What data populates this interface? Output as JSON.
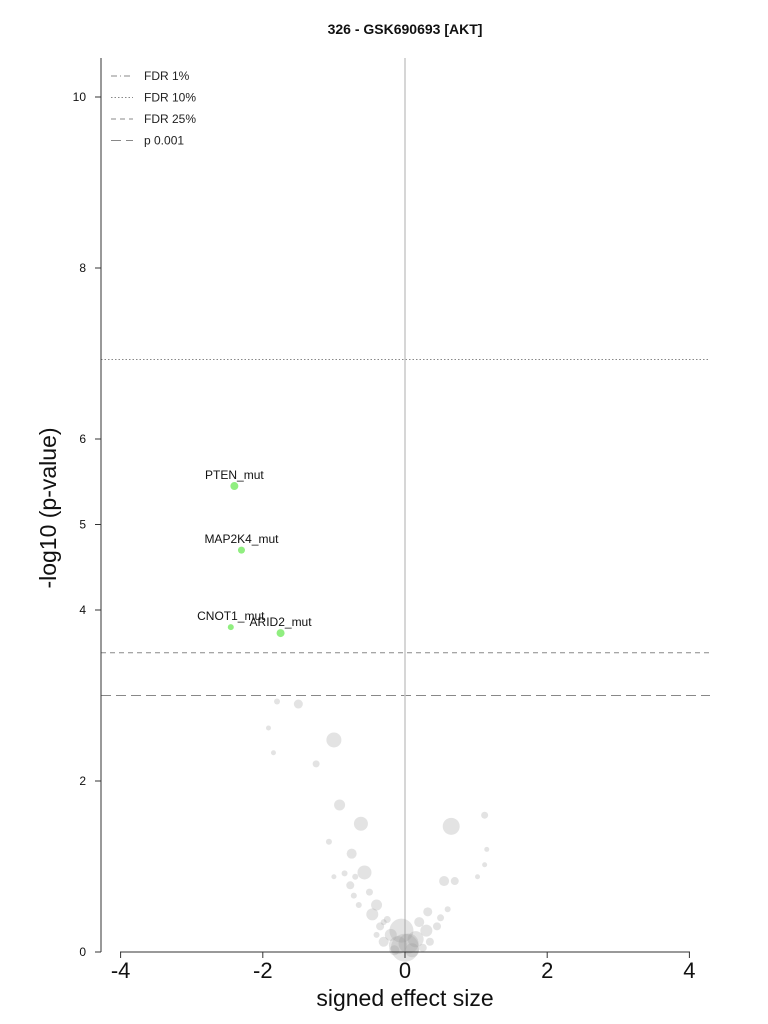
{
  "chart_data": {
    "type": "scatter",
    "title": "326 - GSK690693 [AKT]",
    "xlabel": "signed effect size",
    "ylabel": "-log10 (p-value)",
    "xlim": [
      -4.3,
      4.3
    ],
    "ylim": [
      0,
      10.5
    ],
    "x_ticks": [
      -4,
      -2,
      0,
      2,
      4
    ],
    "x_tick_labels": [
      "-4",
      "-2",
      "0",
      "2",
      "4"
    ],
    "y_ticks": [
      0,
      2,
      4,
      5,
      6,
      8,
      10
    ],
    "y_tick_labels": [
      "0",
      "2",
      "4",
      "5",
      "6",
      "8",
      "10"
    ],
    "legend_position": "top-left",
    "legend": [
      {
        "label": "FDR 1%",
        "style": "dashdot"
      },
      {
        "label": "FDR 10%",
        "style": "dotted"
      },
      {
        "label": "FDR 25%",
        "style": "dashed"
      },
      {
        "label": "p 0.001",
        "style": "longdash"
      }
    ],
    "threshold_lines": [
      {
        "label": "FDR 10%",
        "y": 6.93,
        "style": "dotted"
      },
      {
        "label": "FDR 25%",
        "y": 3.5,
        "style": "dashed"
      },
      {
        "label": "p 0.001",
        "y": 3.0,
        "style": "longdash"
      }
    ],
    "zero_line_x": 0,
    "colors": {
      "significant": "#90ee80",
      "nonsignificant": "#999999",
      "threshold": "#888888",
      "zero_line": "#c8c8c8"
    },
    "significant_points": [
      {
        "name": "PTEN_mut",
        "x": -2.4,
        "y": 5.45,
        "r": 4
      },
      {
        "name": "MAP2K4_mut",
        "x": -2.3,
        "y": 4.7,
        "r": 3.5
      },
      {
        "name": "CNOT1_mut",
        "x": -2.45,
        "y": 3.8,
        "r": 3
      },
      {
        "name": "ARID2_mut",
        "x": -1.75,
        "y": 3.73,
        "r": 4
      }
    ],
    "other_points": [
      {
        "x": -1.5,
        "y": 2.9,
        "r": 4.5
      },
      {
        "x": -1.8,
        "y": 2.93,
        "r": 3
      },
      {
        "x": -1.92,
        "y": 2.62,
        "r": 2.5
      },
      {
        "x": -1.85,
        "y": 2.33,
        "r": 2.5
      },
      {
        "x": -1.0,
        "y": 2.48,
        "r": 7.5
      },
      {
        "x": -1.25,
        "y": 2.2,
        "r": 3.5
      },
      {
        "x": -0.92,
        "y": 1.72,
        "r": 5.5
      },
      {
        "x": -0.62,
        "y": 1.5,
        "r": 7
      },
      {
        "x": -1.07,
        "y": 1.29,
        "r": 3
      },
      {
        "x": -0.75,
        "y": 1.15,
        "r": 5
      },
      {
        "x": -0.57,
        "y": 0.93,
        "r": 7
      },
      {
        "x": -0.85,
        "y": 0.92,
        "r": 3
      },
      {
        "x": -1.0,
        "y": 0.88,
        "r": 2.5
      },
      {
        "x": -0.7,
        "y": 0.88,
        "r": 3
      },
      {
        "x": -0.77,
        "y": 0.78,
        "r": 4
      },
      {
        "x": -0.4,
        "y": 0.55,
        "r": 5.5
      },
      {
        "x": -0.72,
        "y": 0.66,
        "r": 3
      },
      {
        "x": -0.65,
        "y": 0.55,
        "r": 3
      },
      {
        "x": -0.46,
        "y": 0.44,
        "r": 6
      },
      {
        "x": -0.5,
        "y": 0.7,
        "r": 3.5
      },
      {
        "x": 0.65,
        "y": 1.47,
        "r": 8.5
      },
      {
        "x": 1.12,
        "y": 1.6,
        "r": 3.5
      },
      {
        "x": 1.15,
        "y": 1.2,
        "r": 2.5
      },
      {
        "x": 1.12,
        "y": 1.02,
        "r": 2.5
      },
      {
        "x": 1.02,
        "y": 0.88,
        "r": 2.5
      },
      {
        "x": 0.55,
        "y": 0.83,
        "r": 5
      },
      {
        "x": 0.7,
        "y": 0.83,
        "r": 4
      },
      {
        "x": 0.6,
        "y": 0.5,
        "r": 3
      },
      {
        "x": 0.32,
        "y": 0.47,
        "r": 4.5
      },
      {
        "x": 0.5,
        "y": 0.4,
        "r": 3.5
      },
      {
        "x": 0.2,
        "y": 0.35,
        "r": 5
      },
      {
        "x": 0.3,
        "y": 0.25,
        "r": 6
      },
      {
        "x": 0.45,
        "y": 0.3,
        "r": 4
      },
      {
        "x": 0.15,
        "y": 0.15,
        "r": 8
      },
      {
        "x": 0.05,
        "y": 0.1,
        "r": 10
      },
      {
        "x": -0.05,
        "y": 0.25,
        "r": 12
      },
      {
        "x": -0.1,
        "y": 0.08,
        "r": 9
      },
      {
        "x": -0.2,
        "y": 0.2,
        "r": 6
      },
      {
        "x": -0.3,
        "y": 0.12,
        "r": 5
      },
      {
        "x": -0.35,
        "y": 0.3,
        "r": 4
      },
      {
        "x": -0.25,
        "y": 0.38,
        "r": 3.5
      },
      {
        "x": 0.1,
        "y": 0.02,
        "r": 7
      },
      {
        "x": -0.15,
        "y": 0.02,
        "r": 5
      },
      {
        "x": 0.25,
        "y": 0.05,
        "r": 4
      },
      {
        "x": -0.3,
        "y": 0.35,
        "r": 3
      },
      {
        "x": 0.35,
        "y": 0.12,
        "r": 4
      },
      {
        "x": -0.4,
        "y": 0.2,
        "r": 3
      },
      {
        "x": 0.0,
        "y": 0.05,
        "r": 14
      }
    ]
  }
}
